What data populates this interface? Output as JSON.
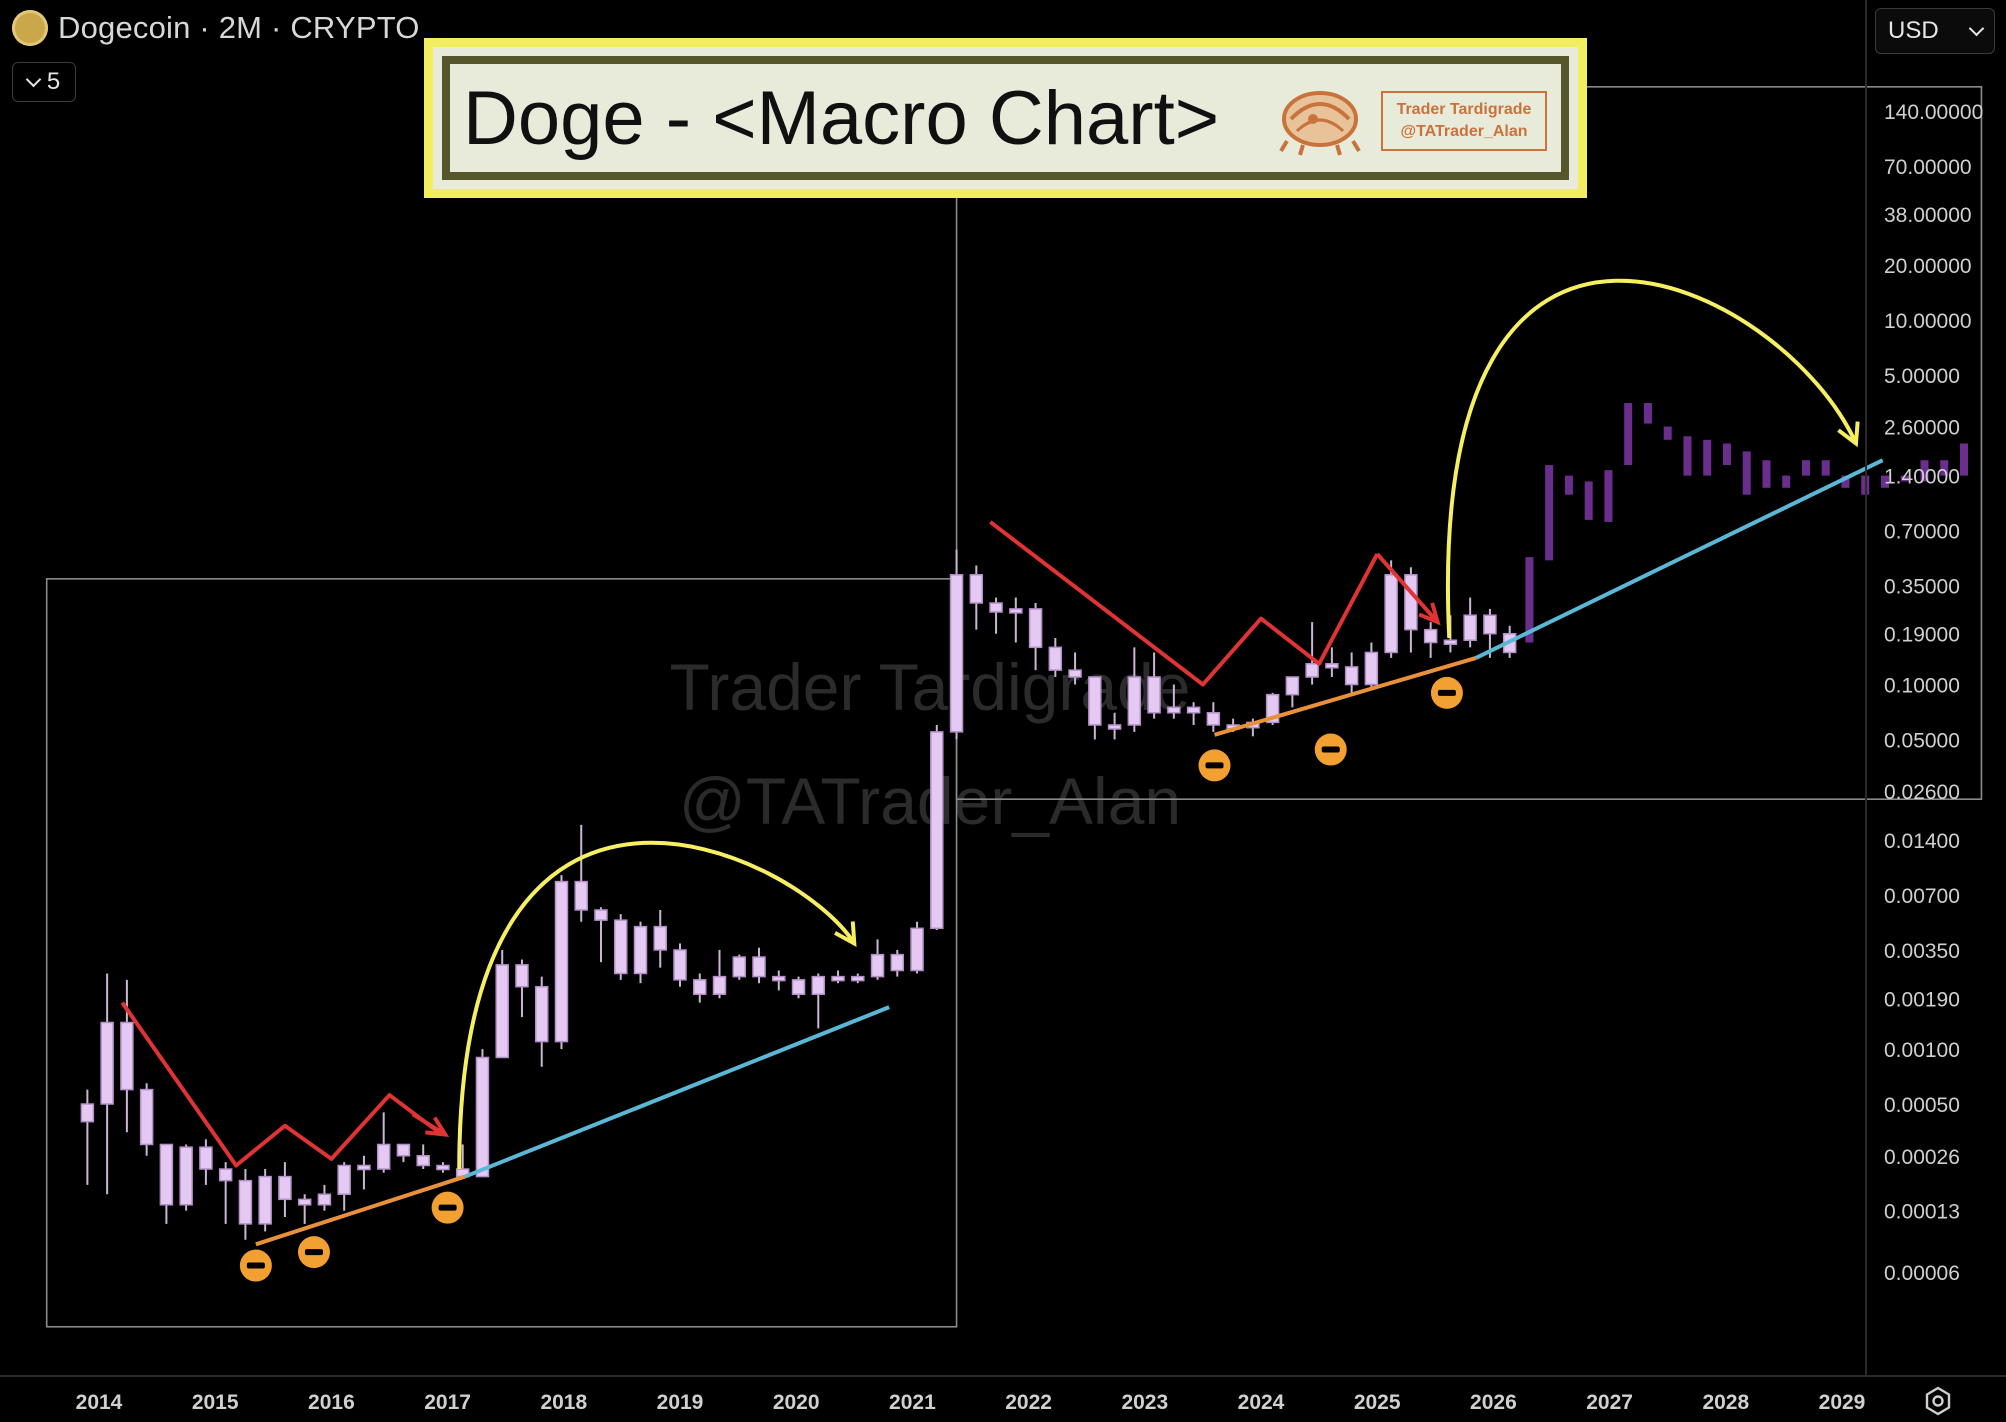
{
  "header": {
    "symbol_title": "Dogecoin · 2M · CRYPTO",
    "interval_count": "5",
    "currency": "USD"
  },
  "banner": {
    "title": "Doge - <Macro Chart>",
    "logo_line1": "Trader Tardigrade",
    "logo_line2": "@TATrader_Alan"
  },
  "watermark": {
    "line1": "Trader Tardigrade",
    "line2": "@TATrader_Alan"
  },
  "colors": {
    "candle_fill": "#e4c9f2",
    "candle_wick": "#c9b7d4",
    "projection": "#6a2f8c",
    "zigzag": "#e03434",
    "arc": "#f5ef61",
    "support_orange": "#e9913a",
    "support_blue": "#5ab8d6",
    "marker": "#f2a032"
  },
  "chart_data": {
    "type": "candlestick",
    "x_axis": {
      "tick_labels": [
        "2014",
        "2015",
        "2016",
        "2017",
        "2018",
        "2019",
        "2020",
        "2021",
        "2022",
        "2023",
        "2024",
        "2025",
        "2026",
        "2027",
        "2028",
        "2029"
      ]
    },
    "y_axis": {
      "scale": "log",
      "tick_labels": [
        "140.00000",
        "70.00000",
        "38.00000",
        "20.00000",
        "10.00000",
        "5.00000",
        "2.60000",
        "1.40000",
        "0.70000",
        "0.35000",
        "0.19000",
        "0.10000",
        "0.05000",
        "0.02600",
        "0.01400",
        "0.00700",
        "0.00350",
        "0.00190",
        "0.00100",
        "0.00050",
        "0.00026",
        "0.00013",
        "0.00006"
      ]
    },
    "candles": [
      [
        2013.9,
        0.0004,
        0.0006,
        0.00018,
        0.0005
      ],
      [
        2014.07,
        0.0005,
        0.0026,
        0.00016,
        0.0014
      ],
      [
        2014.24,
        0.0014,
        0.0024,
        0.00035,
        0.0006
      ],
      [
        2014.41,
        0.0006,
        0.00065,
        0.00026,
        0.0003
      ],
      [
        2014.58,
        0.0003,
        0.0003,
        0.00011,
        0.00014
      ],
      [
        2014.75,
        0.00014,
        0.0003,
        0.00013,
        0.00029
      ],
      [
        2014.92,
        0.00029,
        0.00032,
        0.00018,
        0.00022
      ],
      [
        2015.09,
        0.00022,
        0.00024,
        0.00011,
        0.00019
      ],
      [
        2015.26,
        0.00019,
        0.00022,
        9e-05,
        0.00011
      ],
      [
        2015.43,
        0.00011,
        0.00022,
        0.0001,
        0.0002
      ],
      [
        2015.6,
        0.0002,
        0.00024,
        0.00012,
        0.00015
      ],
      [
        2015.77,
        0.00015,
        0.00016,
        0.00011,
        0.00014
      ],
      [
        2015.94,
        0.00014,
        0.00018,
        0.00013,
        0.00016
      ],
      [
        2016.11,
        0.00016,
        0.00024,
        0.00013,
        0.00023
      ],
      [
        2016.28,
        0.00023,
        0.00026,
        0.00017,
        0.00022
      ],
      [
        2016.45,
        0.00022,
        0.00045,
        0.00021,
        0.0003
      ],
      [
        2016.62,
        0.0003,
        0.0003,
        0.00024,
        0.00026
      ],
      [
        2016.79,
        0.00026,
        0.0003,
        0.00022,
        0.00023
      ],
      [
        2016.96,
        0.00023,
        0.00024,
        0.00021,
        0.00022
      ],
      [
        2017.13,
        0.00022,
        0.0003,
        0.00021,
        0.0002
      ],
      [
        2017.3,
        0.0002,
        0.001,
        0.0002,
        0.0009
      ],
      [
        2017.47,
        0.0009,
        0.0035,
        0.0009,
        0.0029
      ],
      [
        2017.64,
        0.0029,
        0.0031,
        0.0015,
        0.0022
      ],
      [
        2017.81,
        0.0022,
        0.0025,
        0.0008,
        0.0011
      ],
      [
        2017.98,
        0.0011,
        0.009,
        0.001,
        0.0083
      ],
      [
        2018.15,
        0.0083,
        0.017,
        0.005,
        0.0058
      ],
      [
        2018.32,
        0.0058,
        0.006,
        0.003,
        0.0051
      ],
      [
        2018.49,
        0.0051,
        0.0055,
        0.0024,
        0.0026
      ],
      [
        2018.66,
        0.0026,
        0.005,
        0.0023,
        0.0047
      ],
      [
        2018.83,
        0.0047,
        0.0058,
        0.0028,
        0.0035
      ],
      [
        2019.0,
        0.0035,
        0.0038,
        0.0022,
        0.0024
      ],
      [
        2019.17,
        0.0024,
        0.0026,
        0.0018,
        0.002
      ],
      [
        2019.34,
        0.002,
        0.0035,
        0.0019,
        0.0025
      ],
      [
        2019.51,
        0.0025,
        0.0033,
        0.0024,
        0.0032
      ],
      [
        2019.68,
        0.0032,
        0.0036,
        0.0023,
        0.0025
      ],
      [
        2019.85,
        0.0025,
        0.0027,
        0.0021,
        0.0024
      ],
      [
        2020.02,
        0.0024,
        0.0025,
        0.0019,
        0.002
      ],
      [
        2020.19,
        0.002,
        0.0026,
        0.0013,
        0.0025
      ],
      [
        2020.36,
        0.0025,
        0.0027,
        0.0023,
        0.0024
      ],
      [
        2020.53,
        0.0024,
        0.0026,
        0.0023,
        0.0025
      ],
      [
        2020.7,
        0.0025,
        0.004,
        0.0024,
        0.0033
      ],
      [
        2020.87,
        0.0033,
        0.0035,
        0.0025,
        0.0027
      ],
      [
        2021.04,
        0.0027,
        0.005,
        0.0026,
        0.0046
      ],
      [
        2021.21,
        0.0046,
        0.06,
        0.0045,
        0.055
      ],
      [
        2021.38,
        0.055,
        0.55,
        0.05,
        0.4
      ],
      [
        2021.55,
        0.4,
        0.45,
        0.2,
        0.28
      ],
      [
        2021.72,
        0.28,
        0.3,
        0.19,
        0.25
      ],
      [
        2021.89,
        0.25,
        0.3,
        0.17,
        0.26
      ],
      [
        2022.06,
        0.26,
        0.28,
        0.12,
        0.16
      ],
      [
        2022.23,
        0.16,
        0.18,
        0.11,
        0.12
      ],
      [
        2022.4,
        0.12,
        0.15,
        0.1,
        0.11
      ],
      [
        2022.57,
        0.11,
        0.11,
        0.05,
        0.06
      ],
      [
        2022.74,
        0.06,
        0.07,
        0.05,
        0.06
      ],
      [
        2022.91,
        0.06,
        0.16,
        0.055,
        0.11
      ],
      [
        2023.08,
        0.11,
        0.15,
        0.065,
        0.07
      ],
      [
        2023.25,
        0.07,
        0.1,
        0.065,
        0.075
      ],
      [
        2023.42,
        0.075,
        0.08,
        0.06,
        0.07
      ],
      [
        2023.59,
        0.07,
        0.08,
        0.055,
        0.06
      ],
      [
        2023.76,
        0.06,
        0.065,
        0.055,
        0.058
      ],
      [
        2023.93,
        0.058,
        0.065,
        0.052,
        0.062
      ],
      [
        2024.1,
        0.062,
        0.09,
        0.06,
        0.088
      ],
      [
        2024.27,
        0.088,
        0.11,
        0.075,
        0.11
      ],
      [
        2024.44,
        0.11,
        0.22,
        0.1,
        0.13
      ],
      [
        2024.61,
        0.13,
        0.16,
        0.11,
        0.125
      ],
      [
        2024.78,
        0.125,
        0.15,
        0.09,
        0.1
      ],
      [
        2024.95,
        0.1,
        0.17,
        0.095,
        0.15
      ],
      [
        2025.12,
        0.15,
        0.48,
        0.14,
        0.4
      ],
      [
        2025.29,
        0.4,
        0.44,
        0.15,
        0.2
      ],
      [
        2025.46,
        0.2,
        0.22,
        0.14,
        0.17
      ],
      [
        2025.63,
        0.17,
        0.24,
        0.15,
        0.175
      ],
      [
        2025.8,
        0.175,
        0.3,
        0.16,
        0.24
      ],
      [
        2025.97,
        0.24,
        0.26,
        0.14,
        0.19
      ],
      [
        2026.14,
        0.19,
        0.21,
        0.14,
        0.15
      ]
    ],
    "projection_bars": [
      [
        2026.31,
        0.17,
        0.5
      ],
      [
        2026.48,
        0.48,
        1.6
      ],
      [
        2026.65,
        1.1,
        1.4
      ],
      [
        2026.82,
        0.8,
        1.3
      ],
      [
        2026.99,
        0.78,
        1.5
      ],
      [
        2027.16,
        1.6,
        3.5
      ],
      [
        2027.33,
        2.7,
        3.5
      ],
      [
        2027.5,
        2.2,
        2.6
      ],
      [
        2027.67,
        1.4,
        2.3
      ],
      [
        2027.84,
        1.4,
        2.2
      ],
      [
        2028.01,
        1.6,
        2.1
      ],
      [
        2028.18,
        1.1,
        1.9
      ],
      [
        2028.35,
        1.2,
        1.7
      ],
      [
        2028.52,
        1.2,
        1.4
      ],
      [
        2028.69,
        1.4,
        1.7
      ],
      [
        2028.86,
        1.4,
        1.7
      ],
      [
        2029.03,
        1.2,
        1.4
      ],
      [
        2029.2,
        1.1,
        1.4
      ],
      [
        2029.37,
        1.2,
        1.4
      ],
      [
        2029.54,
        1.3,
        1.4
      ],
      [
        2029.71,
        1.3,
        1.7
      ],
      [
        2029.88,
        1.4,
        1.7
      ],
      [
        2030.05,
        1.4,
        2.1
      ]
    ],
    "annotations": [
      {
        "kind": "box",
        "x": [
          2013.55,
          2021.38
        ],
        "y": [
          3e-05,
          0.38
        ]
      },
      {
        "kind": "box",
        "x": [
          2021.38,
          2030.2
        ],
        "y": [
          0.0235,
          190
        ]
      },
      {
        "kind": "zigzag",
        "points": [
          [
            2014.2,
            0.0018
          ],
          [
            2015.18,
            0.00023
          ],
          [
            2015.6,
            0.00038
          ],
          [
            2016.0,
            0.00025
          ],
          [
            2016.5,
            0.00056
          ],
          [
            2016.95,
            0.00034
          ]
        ]
      },
      {
        "kind": "arrow",
        "from": [
          2016.7,
          0.00044
        ],
        "to": [
          2016.98,
          0.00034
        ],
        "color": "zigzag"
      },
      {
        "kind": "zigzag",
        "points": [
          [
            2021.67,
            0.78
          ],
          [
            2023.5,
            0.1
          ],
          [
            2024.0,
            0.23
          ],
          [
            2024.5,
            0.13
          ],
          [
            2025.0,
            0.52
          ]
        ]
      },
      {
        "kind": "arrow",
        "from": [
          2025.0,
          0.52
        ],
        "to": [
          2025.52,
          0.22
        ],
        "color": "zigzag"
      },
      {
        "kind": "support",
        "color": "support_orange",
        "points": [
          [
            2015.35,
            8.5e-05
          ],
          [
            2017.15,
            0.0002
          ]
        ]
      },
      {
        "kind": "support",
        "color": "support_blue",
        "points": [
          [
            2017.15,
            0.0002
          ],
          [
            2020.8,
            0.0017
          ]
        ]
      },
      {
        "kind": "support",
        "color": "support_orange",
        "points": [
          [
            2023.6,
            0.053
          ],
          [
            2025.85,
            0.14
          ]
        ]
      },
      {
        "kind": "support",
        "color": "support_blue",
        "points": [
          [
            2025.85,
            0.14
          ],
          [
            2029.35,
            1.7
          ]
        ]
      },
      {
        "kind": "arc",
        "from": [
          2017.1,
          0.00022
        ],
        "ctrl1": [
          2017.1,
          0.09
        ],
        "ctrl2": [
          2020.0,
          0.012
        ],
        "to": [
          2020.5,
          0.0038
        ]
      },
      {
        "kind": "arc",
        "from": [
          2025.62,
          0.18
        ],
        "ctrl1": [
          2025.4,
          150
        ],
        "ctrl2": [
          2028.5,
          16
        ],
        "to": [
          2029.12,
          2.1
        ]
      },
      {
        "kind": "marker",
        "points": [
          [
            2015.35,
            6.5e-05
          ],
          [
            2015.85,
            7.7e-05
          ],
          [
            2017.0,
            0.000135
          ],
          [
            2023.6,
            0.036
          ],
          [
            2024.6,
            0.044
          ],
          [
            2025.6,
            0.09
          ]
        ]
      }
    ]
  }
}
